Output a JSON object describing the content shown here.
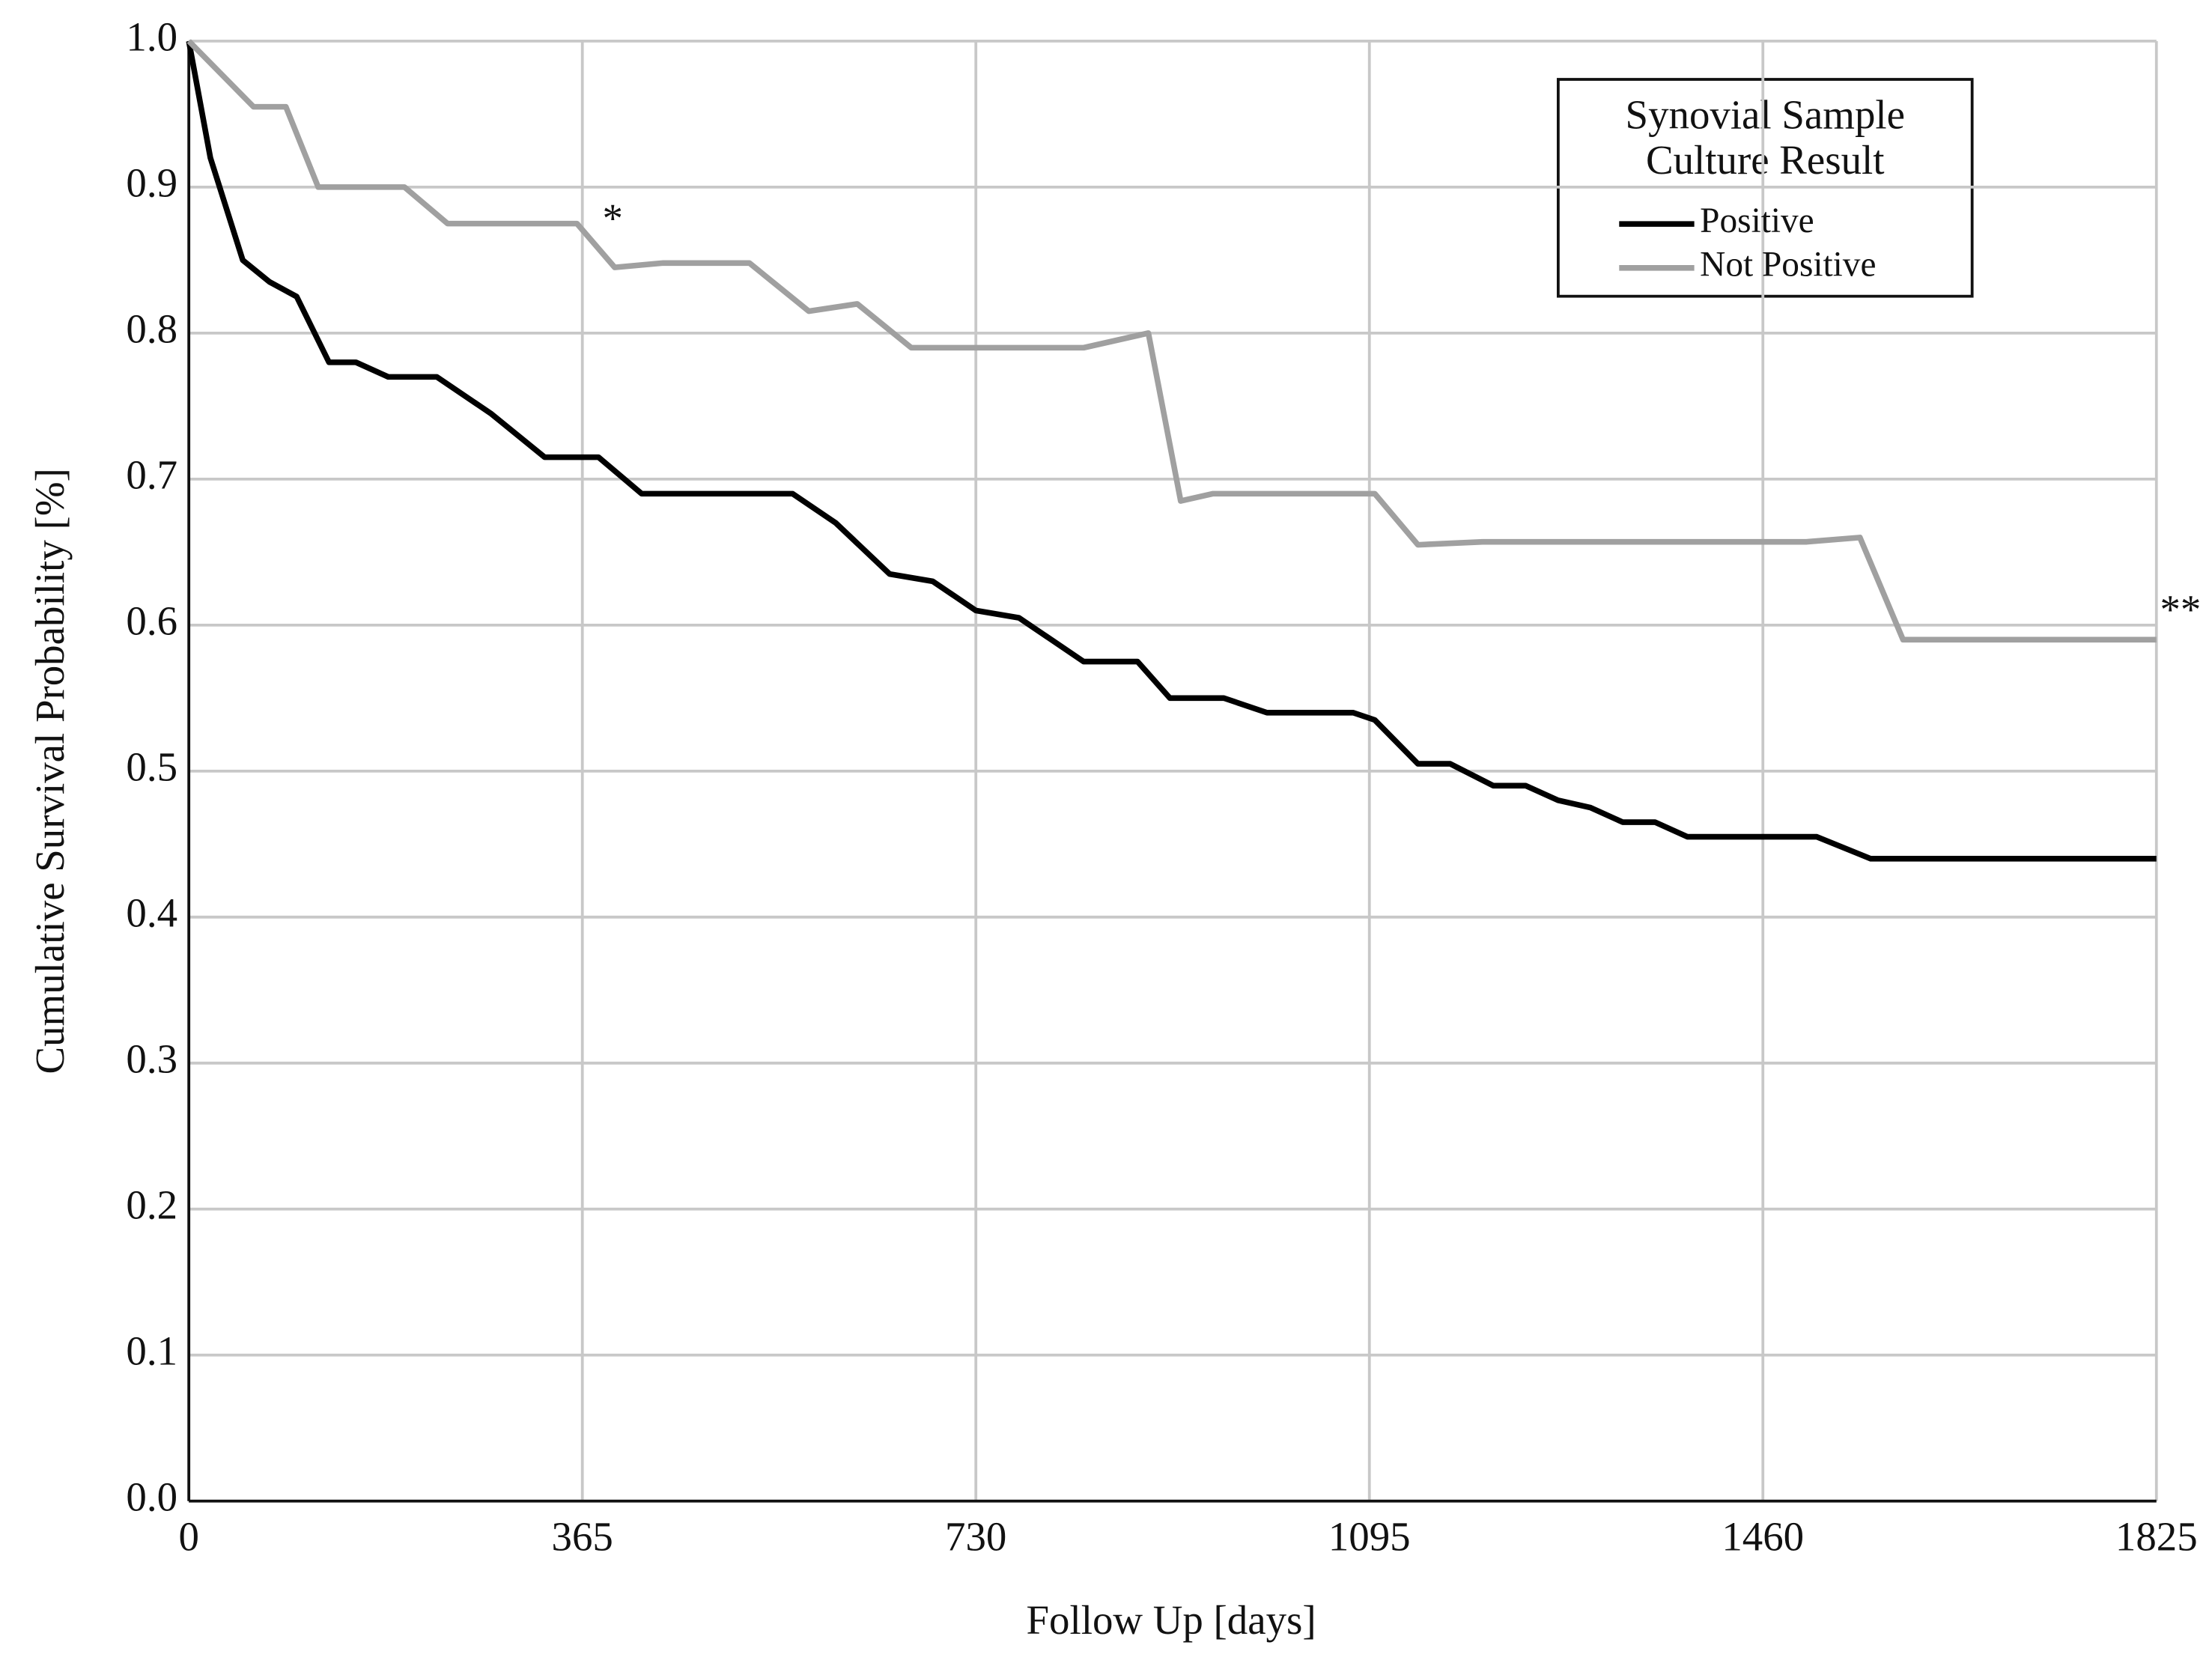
{
  "chart_data": {
    "type": "line",
    "xlabel": "Follow Up [days]",
    "ylabel": "Cumulative Survival Probability [%]",
    "legend_title": [
      "Synovial Sample",
      "Culture Result"
    ],
    "legend_position": "upper right",
    "annotations": [
      "*",
      "**"
    ],
    "grid": true,
    "xlim": [
      0,
      1825
    ],
    "xticks": [
      0,
      365,
      730,
      1095,
      1460,
      1825
    ],
    "ylim": [
      0,
      1
    ],
    "yticks": [
      {
        "value": 0,
        "label": "0.0"
      },
      0.1,
      0.2,
      0.3,
      0.4,
      0.5,
      0.6,
      0.7,
      0.8,
      0.9,
      {
        "value": 1,
        "label": "1.0"
      }
    ],
    "series": [
      {
        "name": "Positive",
        "color": "#000000",
        "x": [
          0,
          20,
          50,
          75,
          100,
          130,
          155,
          185,
          230,
          280,
          330,
          380,
          420,
          480,
          560,
          600,
          650,
          690,
          730,
          770,
          830,
          880,
          910,
          960,
          1000,
          1080,
          1100,
          1140,
          1170,
          1210,
          1240,
          1270,
          1300,
          1330,
          1360,
          1390,
          1450,
          1510,
          1560,
          1825
        ],
        "values": [
          1.0,
          0.92,
          0.85,
          0.835,
          0.825,
          0.78,
          0.78,
          0.77,
          0.77,
          0.745,
          0.715,
          0.715,
          0.69,
          0.69,
          0.69,
          0.67,
          0.635,
          0.63,
          0.61,
          0.605,
          0.575,
          0.575,
          0.55,
          0.55,
          0.54,
          0.54,
          0.535,
          0.505,
          0.505,
          0.49,
          0.49,
          0.48,
          0.475,
          0.465,
          0.465,
          0.455,
          0.455,
          0.455,
          0.44,
          0.44
        ]
      },
      {
        "name": "Not Positive",
        "color": "#a0a0a0",
        "x": [
          0,
          40,
          60,
          90,
          120,
          150,
          200,
          240,
          290,
          360,
          395,
          440,
          520,
          575,
          620,
          670,
          750,
          830,
          890,
          920,
          950,
          1050,
          1100,
          1140,
          1200,
          1500,
          1550,
          1590,
          1640,
          1825
        ],
        "values": [
          1.0,
          0.97,
          0.955,
          0.955,
          0.9,
          0.9,
          0.9,
          0.875,
          0.875,
          0.875,
          0.845,
          0.848,
          0.848,
          0.815,
          0.82,
          0.79,
          0.79,
          0.79,
          0.8,
          0.685,
          0.69,
          0.69,
          0.69,
          0.655,
          0.657,
          0.657,
          0.66,
          0.59,
          0.59,
          0.59
        ]
      }
    ]
  }
}
